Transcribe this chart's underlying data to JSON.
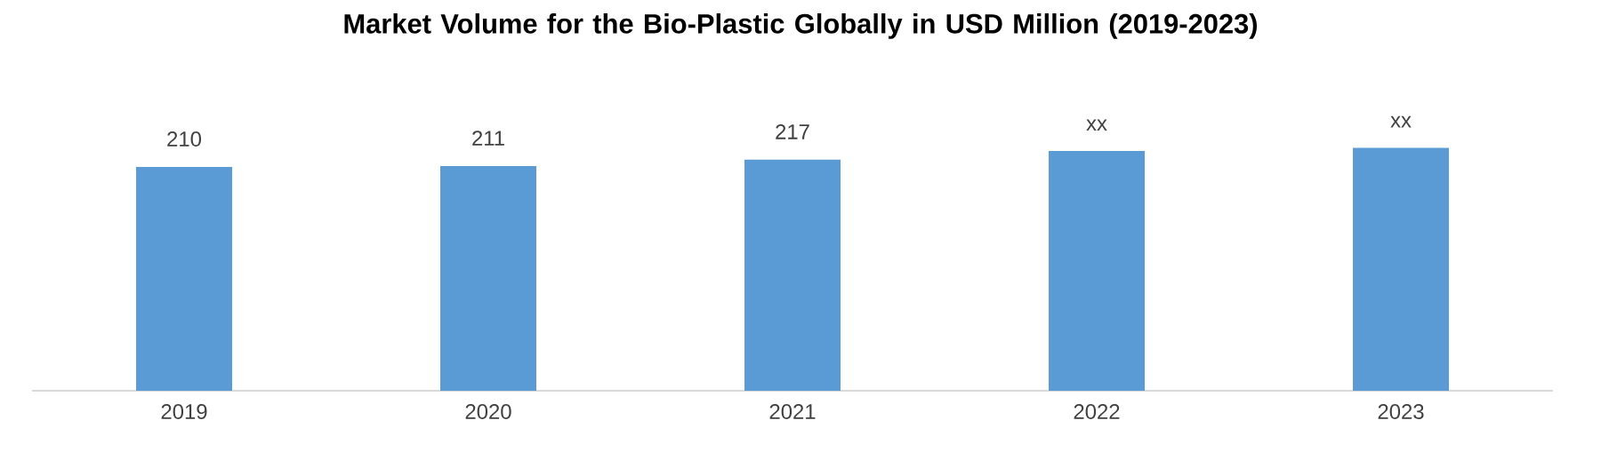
{
  "chart_data": {
    "type": "bar",
    "title": "Market Volume for the Bio-Plastic Globally in USD Million (2019-2023)",
    "categories": [
      "2019",
      "2020",
      "2021",
      "2022",
      "2023"
    ],
    "values": [
      210,
      211,
      217,
      225,
      228
    ],
    "value_labels": [
      "210",
      "211",
      "217",
      "xx",
      "xx"
    ],
    "tick_labels": "x",
    "color": "#5b9bd5"
  }
}
